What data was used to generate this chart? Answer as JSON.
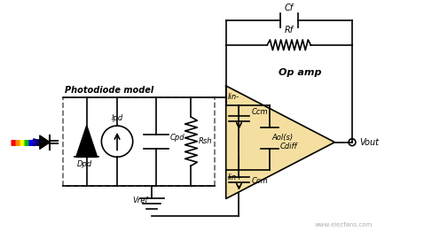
{
  "fig_width": 4.78,
  "fig_height": 2.7,
  "dpi": 100,
  "bg_color": "#ffffff",
  "watermark": "www.elecfans.com",
  "op_amp_color": "#f5dfa0",
  "op_amp_label": "Op amp",
  "aol_label": "Aol(s)",
  "vout_label": "Vout",
  "cf_label": "Cf",
  "rf_label": "Rf",
  "iin_minus_label": "Iin-",
  "iin_plus_label": "Iin+",
  "ccm_label": "Ccm",
  "cdiff_label": "Cdiff",
  "dpd_label": "Dpd",
  "ipd_label": "Ipd",
  "cpd_label": "Cpd",
  "rsh_label": "Rsh",
  "vref_label": "Vref",
  "photodiode_model_label": "Photodiode model",
  "line_color": "#000000",
  "label_fontsize": 7,
  "small_fontsize": 6
}
